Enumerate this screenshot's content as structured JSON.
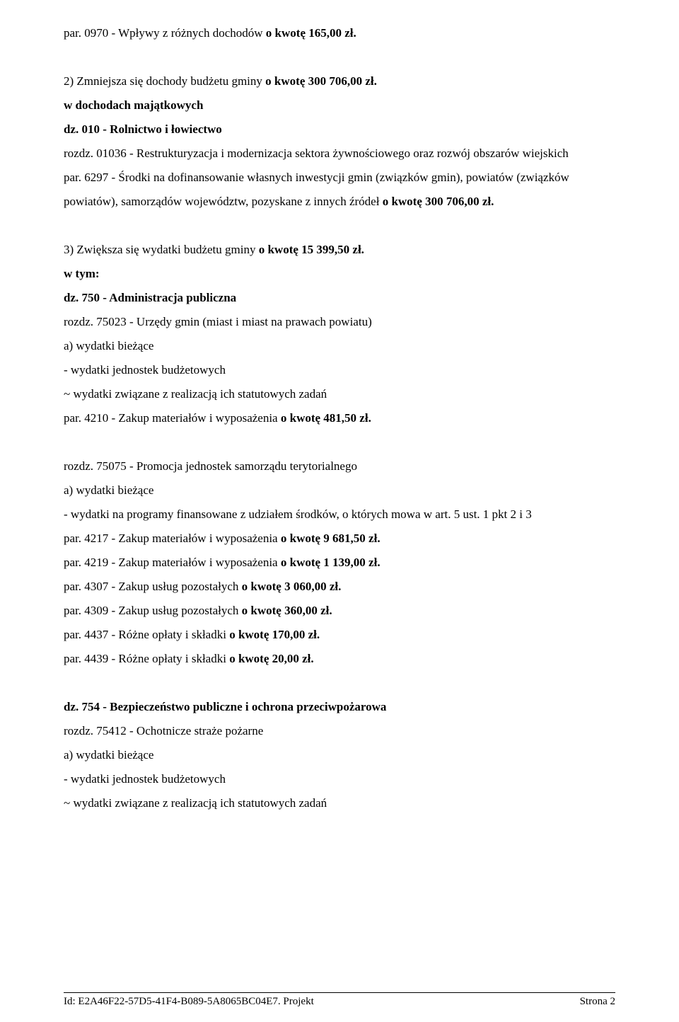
{
  "body": {
    "block1": {
      "p1_a": "par. 0970 - Wpływy z różnych dochodów ",
      "p1_b": "o kwotę 165,00 zł."
    },
    "block2": {
      "p1_a": "2) Zmniejsza się dochody budżetu gminy ",
      "p1_b": "o kwotę 300 706,00 zł.",
      "p2": "w dochodach majątkowych",
      "p3": "dz. 010 - Rolnictwo i łowiectwo",
      "p4": "rozdz. 01036 - Restrukturyzacja i modernizacja sektora żywnościowego oraz rozwój obszarów wiejskich",
      "p5_a": "par. 6297 - Środki na dofinansowanie własnych inwestycji gmin (związków gmin), powiatów (związków powiatów), samorządów województw, pozyskane z innych źródeł ",
      "p5_b": "o kwotę 300 706,00 zł."
    },
    "block3": {
      "p1_a": "3) Zwiększa się wydatki budżetu gminy ",
      "p1_b": "o kwotę 15 399,50 zł.",
      "p2": "w tym:",
      "p3": "dz. 750 - Administracja publiczna",
      "p4": "rozdz. 75023 - Urzędy gmin (miast i miast na prawach powiatu)",
      "p5": "a) wydatki bieżące",
      "p6": "- wydatki jednostek budżetowych",
      "p7": "~ wydatki związane z realizacją ich statutowych zadań",
      "p8_a": "par. 4210 - Zakup materiałów i wyposażenia ",
      "p8_b": "o kwotę 481,50 zł."
    },
    "block4": {
      "p1": "rozdz. 75075 - Promocja jednostek samorządu terytorialnego",
      "p2": "a) wydatki bieżące",
      "p3": "- wydatki na programy finansowane z udziałem środków, o których mowa w art. 5 ust. 1 pkt 2 i 3",
      "p4_a": "par. 4217 - Zakup materiałów i wyposażenia ",
      "p4_b": "o kwotę 9 681,50 zł.",
      "p5_a": "par. 4219 - Zakup materiałów i wyposażenia ",
      "p5_b": "o kwotę 1 139,00 zł.",
      "p6_a": "par. 4307 - Zakup usług pozostałych ",
      "p6_b": "o kwotę 3 060,00 zł.",
      "p7_a": "par. 4309 - Zakup usług pozostałych ",
      "p7_b": "o kwotę 360,00 zł.",
      "p8_a": "par. 4437 - Różne opłaty i składki ",
      "p8_b": "o kwotę 170,00 zł.",
      "p9_a": "par. 4439 - Różne opłaty i składki ",
      "p9_b": "o kwotę 20,00 zł."
    },
    "block5": {
      "p1": "dz. 754 - Bezpieczeństwo publiczne i ochrona przeciwpożarowa",
      "p2": "rozdz. 75412 - Ochotnicze straże pożarne",
      "p3": "a) wydatki bieżące",
      "p4": "- wydatki jednostek budżetowych",
      "p5": "~ wydatki związane z realizacją ich statutowych zadań"
    }
  },
  "footer": {
    "left": "Id: E2A46F22-57D5-41F4-B089-5A8065BC04E7. Projekt",
    "right": "Strona 2"
  }
}
